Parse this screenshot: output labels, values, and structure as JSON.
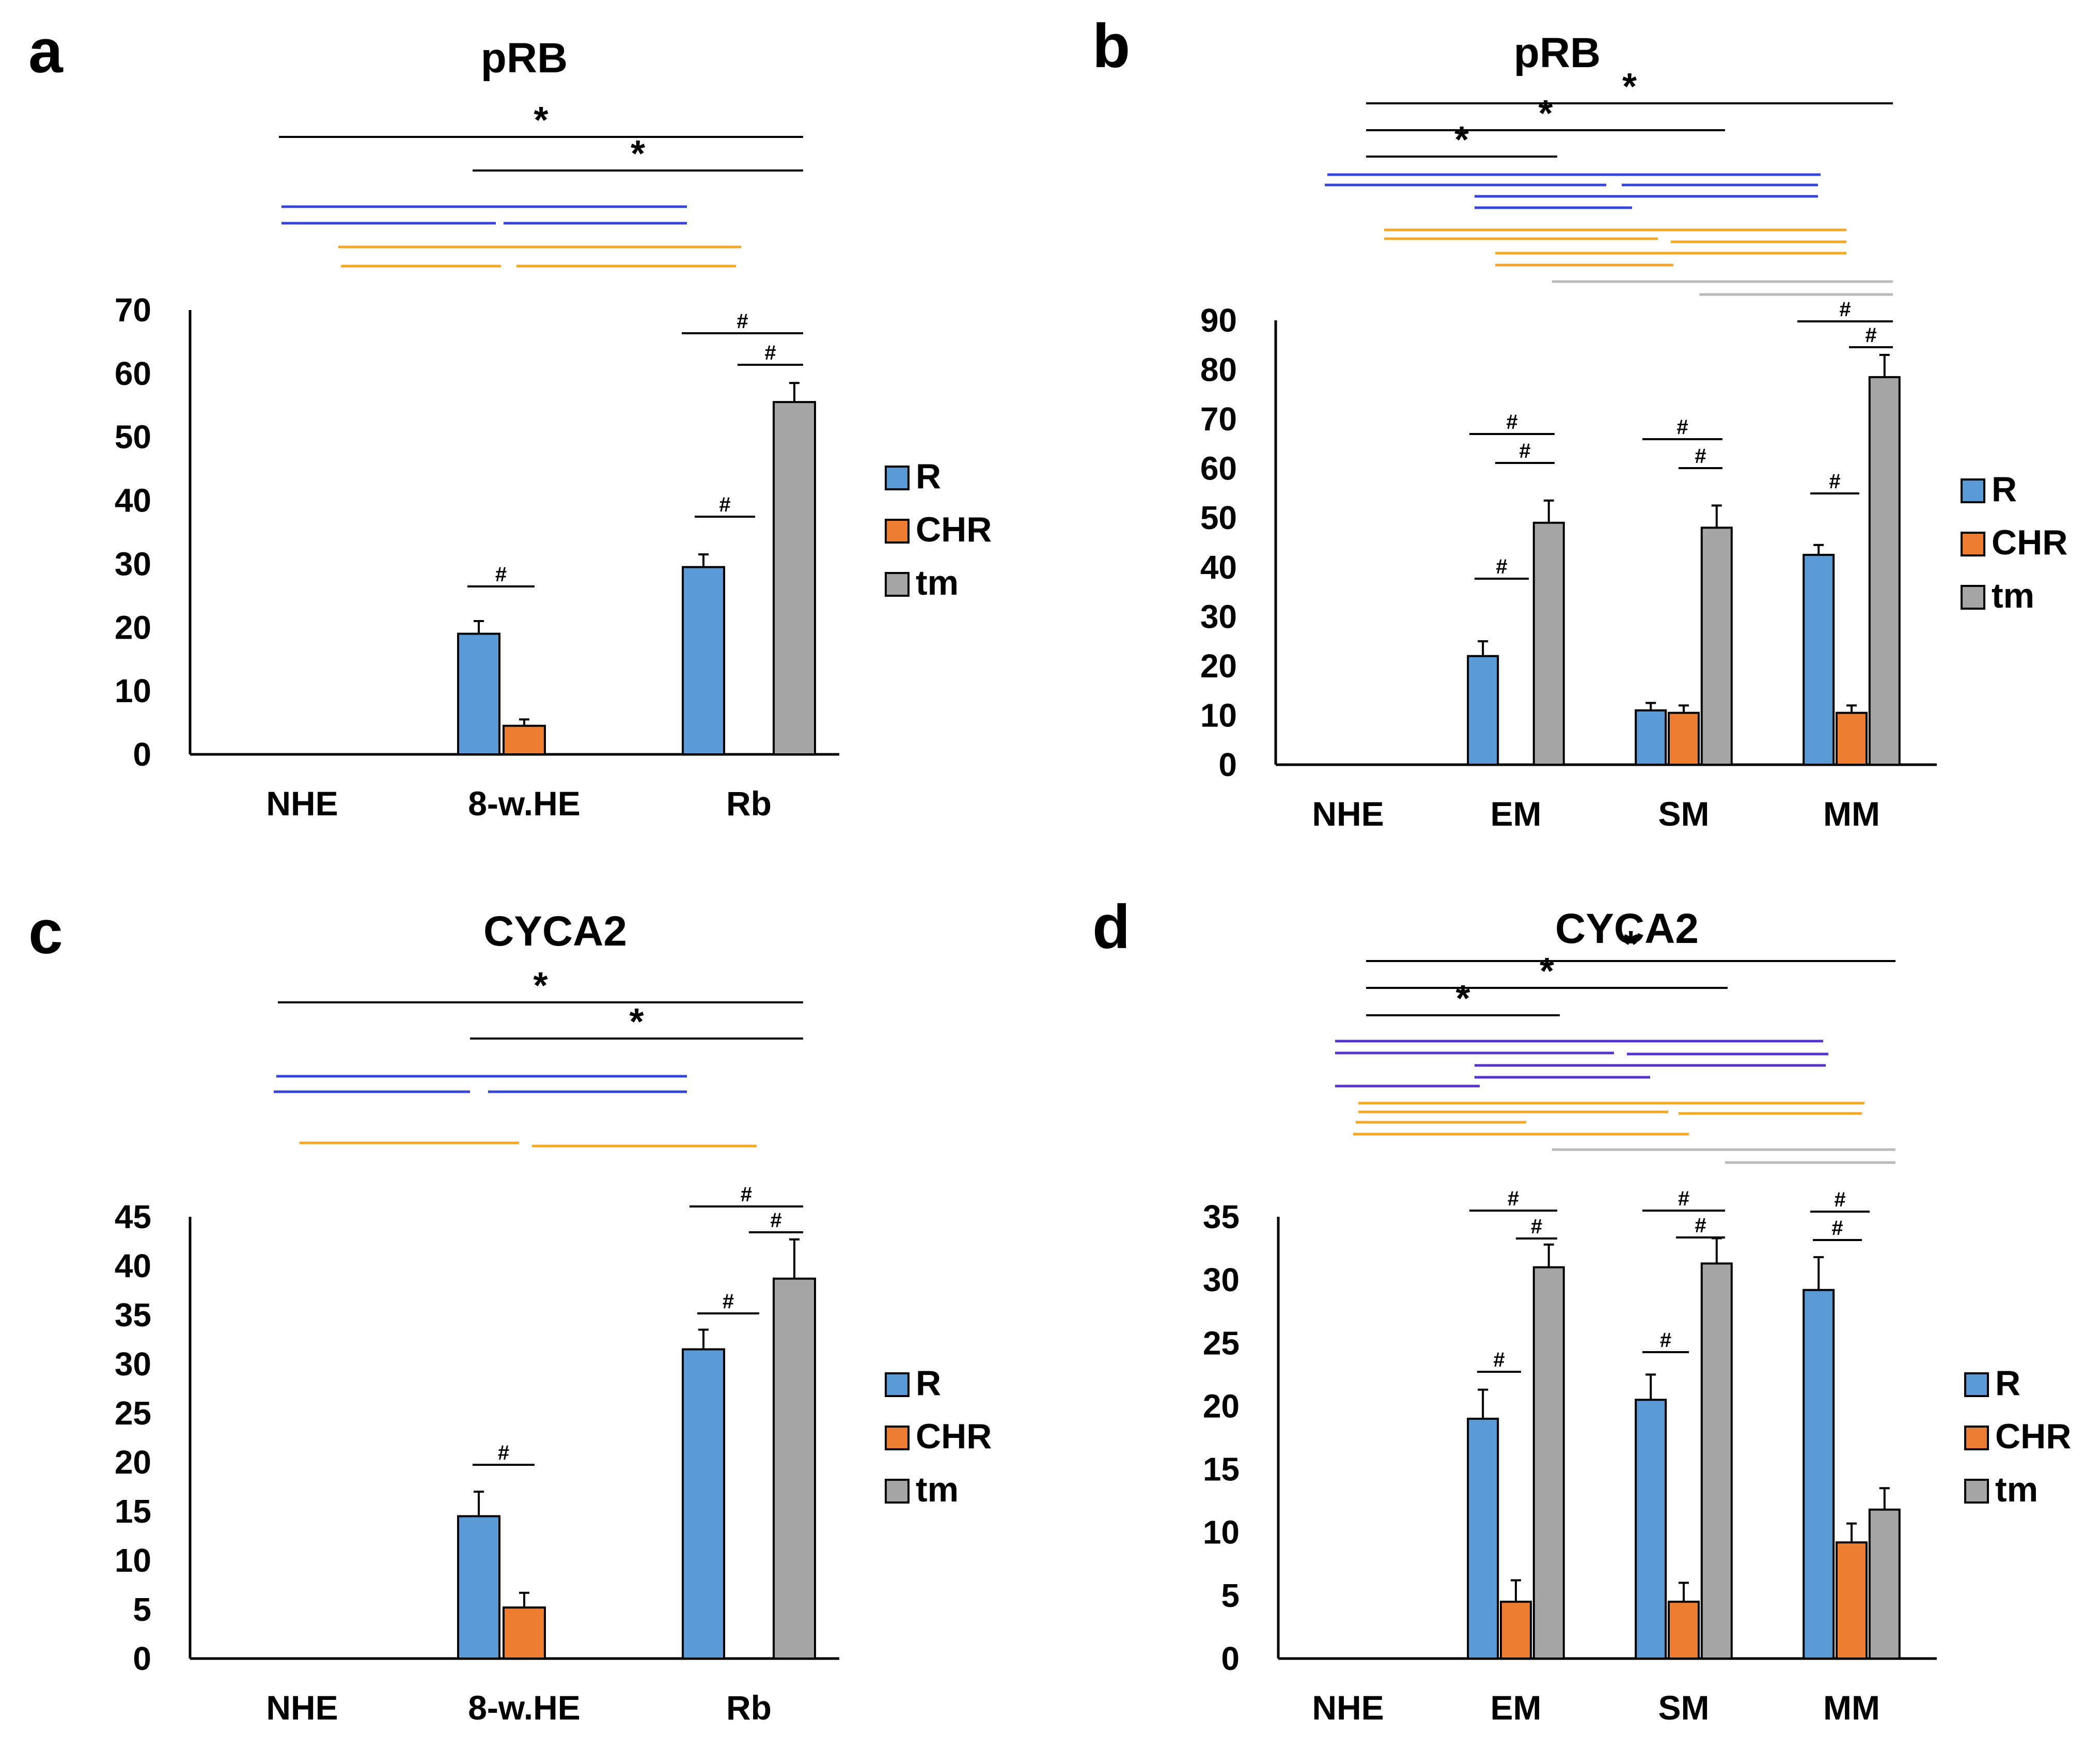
{
  "colors": {
    "R": "#5b9bd5",
    "CHR": "#ed7d31",
    "tm": "#a5a5a5",
    "blue_bracket": "#3344dd",
    "purple_bracket": "#5533cc",
    "orange_bracket": "#f5a623",
    "gray_bracket": "#bbbbbb",
    "black": "#000000"
  },
  "chart_data": [
    {
      "id": "a",
      "panel_letter": "a",
      "type": "bar",
      "title": "pRB",
      "categories": [
        "NHE",
        "8-w.HE",
        "Rb"
      ],
      "series": [
        {
          "name": "R",
          "values": [
            0,
            19,
            29.5
          ],
          "errors": [
            0,
            2,
            2
          ]
        },
        {
          "name": "CHR",
          "values": [
            0,
            4.5,
            0
          ],
          "errors": [
            0,
            1,
            0
          ]
        },
        {
          "name": "tm",
          "values": [
            0,
            0,
            55.5
          ],
          "errors": [
            0,
            0,
            3
          ]
        }
      ],
      "yticks": [
        0,
        10,
        20,
        30,
        40,
        50,
        60,
        70
      ],
      "ylim": [
        0,
        70
      ],
      "legend": [
        "R",
        "CHR",
        "tm"
      ],
      "significance": {
        "star": "*",
        "hash": "#"
      }
    },
    {
      "id": "b",
      "panel_letter": "b",
      "type": "bar",
      "title": "pRB",
      "categories": [
        "NHE",
        "EM",
        "SM",
        "MM"
      ],
      "series": [
        {
          "name": "R",
          "values": [
            0,
            22,
            11,
            42.5
          ],
          "errors": [
            0,
            3,
            1.5,
            2
          ]
        },
        {
          "name": "CHR",
          "values": [
            0,
            0,
            10.5,
            10.5
          ],
          "errors": [
            0,
            0,
            1.5,
            1.5
          ]
        },
        {
          "name": "tm",
          "values": [
            0,
            49,
            48,
            78.5
          ],
          "errors": [
            0,
            4.5,
            4.5,
            4.5
          ]
        }
      ],
      "yticks": [
        0,
        10,
        20,
        30,
        40,
        50,
        60,
        70,
        80,
        90
      ],
      "ylim": [
        0,
        90
      ],
      "legend": [
        "R",
        "CHR",
        "tm"
      ],
      "significance": {
        "star": "*",
        "hash": "#"
      }
    },
    {
      "id": "c",
      "panel_letter": "c",
      "type": "bar",
      "title": "CYCA2",
      "categories": [
        "NHE",
        "8-w.HE",
        "Rb"
      ],
      "series": [
        {
          "name": "R",
          "values": [
            0,
            14.5,
            31.5
          ],
          "errors": [
            0,
            2.5,
            2
          ]
        },
        {
          "name": "CHR",
          "values": [
            0,
            5.2,
            0
          ],
          "errors": [
            0,
            1.5,
            0
          ]
        },
        {
          "name": "tm",
          "values": [
            0,
            0,
            38.7
          ],
          "errors": [
            0,
            0,
            4
          ]
        }
      ],
      "yticks": [
        0,
        5,
        10,
        15,
        20,
        25,
        30,
        35,
        40,
        45
      ],
      "ylim": [
        0,
        45
      ],
      "legend": [
        "R",
        "CHR",
        "tm"
      ],
      "significance": {
        "star": "*",
        "hash": "#"
      }
    },
    {
      "id": "d",
      "panel_letter": "d",
      "type": "bar",
      "title": "CYCA2",
      "categories": [
        "NHE",
        "EM",
        "SM",
        "MM"
      ],
      "series": [
        {
          "name": "R",
          "values": [
            0,
            19,
            20.5,
            29.2
          ],
          "errors": [
            0,
            2.3,
            2,
            2.6
          ]
        },
        {
          "name": "CHR",
          "values": [
            0,
            4.5,
            4.5,
            9.2
          ],
          "errors": [
            0,
            1.7,
            1.5,
            1.5
          ]
        },
        {
          "name": "tm",
          "values": [
            0,
            31,
            31.3,
            11.8
          ],
          "errors": [
            0,
            1.8,
            2,
            1.7
          ]
        }
      ],
      "yticks": [
        0,
        5,
        10,
        15,
        20,
        25,
        30,
        35
      ],
      "ylim": [
        0,
        35
      ],
      "legend": [
        "R",
        "CHR",
        "tm"
      ],
      "significance": {
        "star": "*",
        "hash": "#"
      }
    }
  ]
}
